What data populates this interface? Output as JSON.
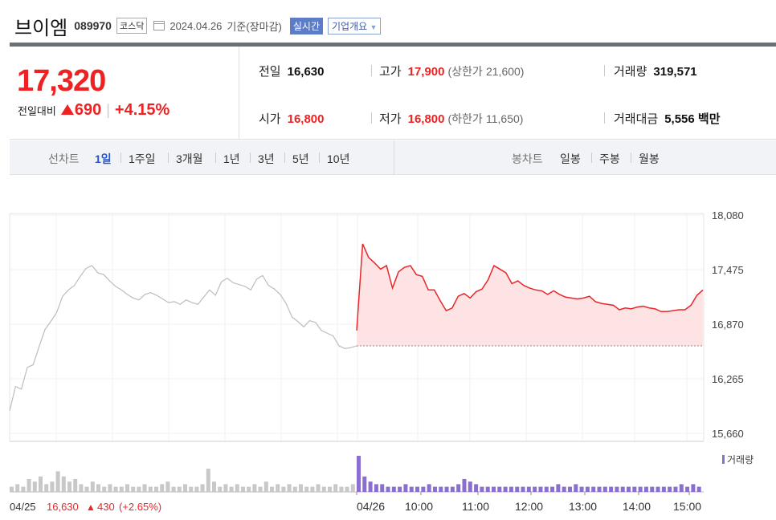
{
  "header": {
    "stock_name": "브이엠",
    "stock_code": "089970",
    "market": "코스닥",
    "date_text": "2024.04.26",
    "as_of": "기준(장마감)",
    "realtime_label": "실시간",
    "company_button": "기업개요"
  },
  "quote": {
    "price": "17,320",
    "change_label": "전일대비",
    "change_abs": "690",
    "change_pct": "+4.15%",
    "prev_close_label": "전일",
    "prev_close": "16,630",
    "high_label": "고가",
    "high": "17,900",
    "upper_limit_label": "(상한가",
    "upper_limit": "21,600)",
    "volume_label": "거래량",
    "volume": "319,571",
    "open_label": "시가",
    "open": "16,800",
    "low_label": "저가",
    "low": "16,800",
    "lower_limit_label": "(하한가",
    "lower_limit": "11,650)",
    "value_label": "거래대금",
    "value": "5,556",
    "value_unit": "백만"
  },
  "period_bar": {
    "line_label": "선차트",
    "line_periods": [
      "1일",
      "1주일",
      "3개월",
      "1년",
      "3년",
      "5년",
      "10년"
    ],
    "active_period": "1일",
    "candle_label": "봉차트",
    "candle_periods": [
      "일봉",
      "주봉",
      "월봉"
    ]
  },
  "chart_data": {
    "type": "line",
    "y_ticks": [
      "18,080",
      "17,475",
      "16,870",
      "16,265",
      "15,660"
    ],
    "ylim": [
      15660,
      18080
    ],
    "x_tick_labels": [
      "04/26",
      "10:00",
      "11:00",
      "12:00",
      "13:00",
      "14:00",
      "15:00"
    ],
    "prev_day_footer": {
      "date": "04/25",
      "close": "16,630",
      "change": "430",
      "change_pct": "(+2.65%)"
    },
    "volume_legend": "거래량",
    "colors": {
      "up": "#e8262b",
      "fill": "#fde3e3",
      "prev": "#bdbdbd",
      "volume_today": "#8a6fd0",
      "volume_prev": "#c8c8c8"
    },
    "series": [
      {
        "name": "04/25",
        "values": [
          15910,
          16180,
          16150,
          16390,
          16420,
          16620,
          16810,
          16900,
          17000,
          17180,
          17250,
          17300,
          17400,
          17490,
          17520,
          17440,
          17420,
          17350,
          17290,
          17250,
          17200,
          17160,
          17140,
          17200,
          17220,
          17190,
          17150,
          17110,
          17120,
          17090,
          17140,
          17110,
          17090,
          17170,
          17250,
          17190,
          17340,
          17380,
          17330,
          17310,
          17290,
          17250,
          17370,
          17410,
          17300,
          17260,
          17200,
          17100,
          16950,
          16900,
          16840,
          16910,
          16890,
          16800,
          16770,
          16740,
          16630,
          16600,
          16610,
          16630
        ]
      },
      {
        "name": "04/26",
        "values": [
          16800,
          17760,
          17610,
          17550,
          17480,
          17520,
          17270,
          17450,
          17500,
          17520,
          17420,
          17400,
          17250,
          17250,
          17130,
          17020,
          17050,
          17180,
          17210,
          17160,
          17230,
          17260,
          17360,
          17520,
          17480,
          17440,
          17320,
          17350,
          17300,
          17270,
          17250,
          17240,
          17200,
          17240,
          17200,
          17170,
          17160,
          17150,
          17160,
          17180,
          17120,
          17100,
          17090,
          17080,
          17030,
          17050,
          17040,
          17060,
          17070,
          17050,
          17040,
          17010,
          17010,
          17020,
          17030,
          17030,
          17080,
          17190,
          17250
        ]
      }
    ],
    "volume_prev": [
      2,
      3,
      2,
      5,
      4,
      6,
      3,
      4,
      8,
      6,
      4,
      5,
      3,
      2,
      4,
      3,
      2,
      3,
      2,
      2,
      3,
      2,
      2,
      3,
      2,
      2,
      3,
      4,
      2,
      2,
      3,
      2,
      2,
      3,
      9,
      4,
      2,
      3,
      2,
      3,
      2,
      2,
      3,
      2,
      4,
      2,
      3,
      2,
      3,
      2,
      3,
      2,
      2,
      3,
      2,
      2,
      3,
      2,
      2,
      3
    ],
    "volume_today": [
      14,
      6,
      4,
      3,
      3,
      2,
      2,
      2,
      3,
      2,
      2,
      2,
      3,
      2,
      2,
      2,
      2,
      3,
      5,
      4,
      3,
      2,
      2,
      2,
      2,
      2,
      2,
      2,
      2,
      2,
      2,
      2,
      2,
      2,
      3,
      2,
      2,
      3,
      2,
      2,
      2,
      2,
      2,
      2,
      2,
      2,
      2,
      2,
      2,
      2,
      2,
      2,
      2,
      2,
      2,
      3,
      2,
      3,
      2
    ]
  }
}
